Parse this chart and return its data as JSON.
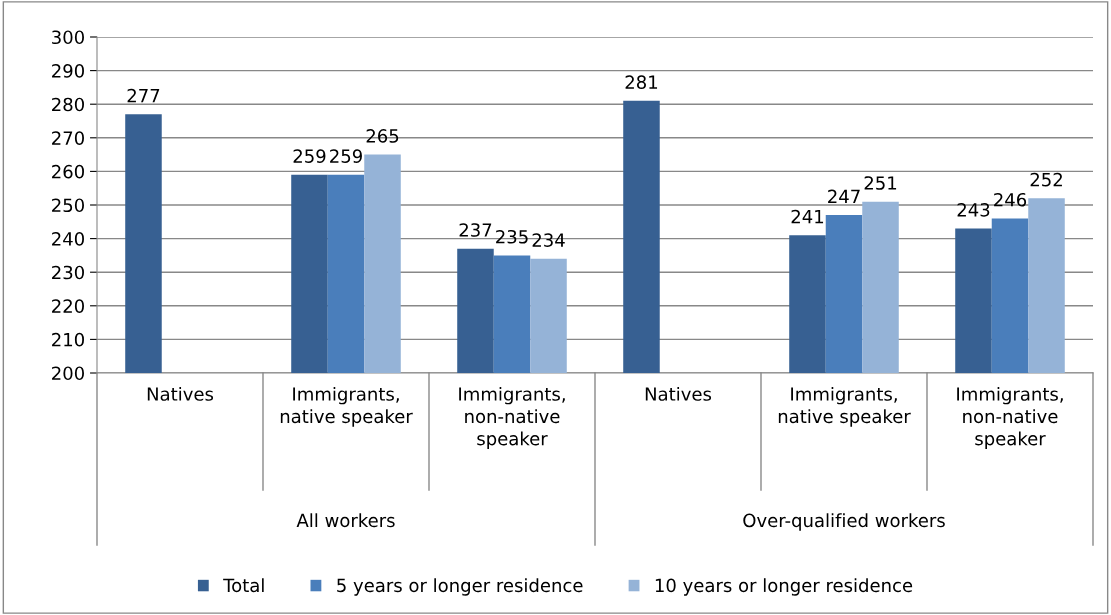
{
  "chart_data": {
    "type": "bar",
    "categories": [
      "Natives",
      "Immigrants,\nnative speaker",
      "Immigrants,\nnon-native\nspeaker",
      "Natives",
      "Immigrants,\nnative speaker",
      "Immigrants,\nnon-native\nspeaker"
    ],
    "series": [
      {
        "name": "Total",
        "color": "#376092",
        "values": [
          277,
          259,
          237,
          281,
          241,
          243
        ]
      },
      {
        "name": "5 years or longer residence",
        "color": "#4a7ebb",
        "values": [
          null,
          259,
          235,
          null,
          247,
          246
        ]
      },
      {
        "name": "10 years or longer residence",
        "color": "#95b3d7",
        "values": [
          null,
          265,
          234,
          null,
          251,
          252
        ]
      }
    ],
    "annotations": [
      "All workers",
      "Over-qualified workers"
    ],
    "ylim": [
      200,
      300
    ],
    "yticks": [
      200,
      210,
      220,
      230,
      240,
      250,
      260,
      270,
      280,
      290,
      300
    ],
    "grid": "y",
    "legend": "bottom",
    "data_labels": true
  }
}
